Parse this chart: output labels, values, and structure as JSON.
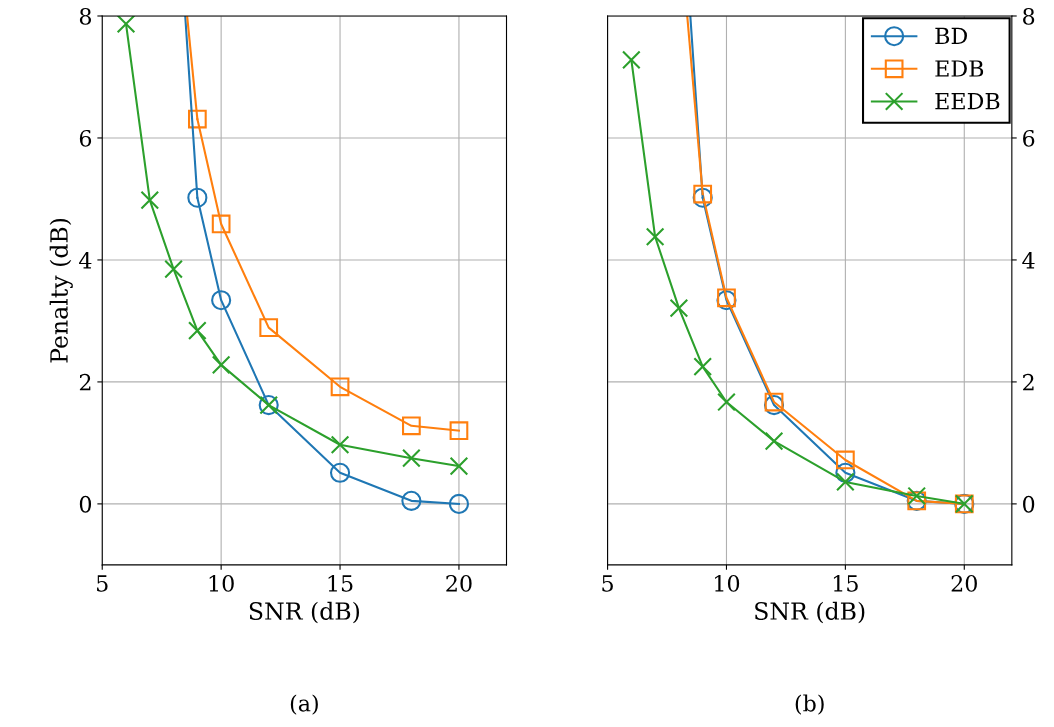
{
  "chart_data": [
    {
      "type": "line",
      "xlabel": "SNR (dB)",
      "ylabel": "Penalty (dB)",
      "annotations": [
        "(a)"
      ],
      "xlim": [
        5,
        22
      ],
      "ylim": [
        -1,
        8
      ],
      "xticks": [
        5,
        10,
        15,
        20
      ],
      "yticks": [
        0,
        2,
        4,
        6,
        8
      ],
      "grid": true,
      "series": [
        {
          "color": "#1f77b4",
          "marker": "circle",
          "x": [
            9,
            10,
            12,
            15,
            18,
            20
          ],
          "values": [
            5.02,
            3.34,
            1.62,
            0.51,
            0.05,
            0
          ]
        },
        {
          "color": "#ff7f0e",
          "marker": "square",
          "x": [
            9,
            10,
            12,
            15,
            18,
            20
          ],
          "values": [
            6.31,
            4.59,
            2.89,
            1.92,
            1.28,
            1.2
          ]
        },
        {
          "color": "#2ca02c",
          "marker": "cross",
          "x": [
            6,
            7,
            8,
            9,
            10,
            12,
            15,
            18,
            20
          ],
          "values": [
            7.87,
            4.98,
            3.85,
            2.84,
            2.28,
            1.62,
            0.97,
            0.75,
            0.62
          ]
        },
        {
          "color": "#1f77b4",
          "marker": "none",
          "x": [
            8.49,
            9
          ],
          "values": [
            8,
            5.02
          ]
        },
        {
          "color": "#ff7f0e",
          "marker": "none",
          "x": [
            8.57,
            9
          ],
          "values": [
            8,
            6.31
          ]
        }
      ]
    },
    {
      "type": "line",
      "xlabel": "SNR (dB)",
      "annotations": [
        "(b)"
      ],
      "xlim": [
        5,
        22
      ],
      "y2lim": [
        -1,
        8
      ],
      "xticks": [
        5,
        10,
        15,
        20
      ],
      "y2ticks": [
        0,
        2,
        4,
        6,
        8
      ],
      "grid": true,
      "legend": "top right",
      "series": [
        {
          "name": "BD",
          "color": "#1f77b4",
          "marker": "circle",
          "axis": "y2",
          "x": [
            9,
            10,
            12,
            15,
            18,
            20
          ],
          "values": [
            5.02,
            3.34,
            1.62,
            0.51,
            0.05,
            0
          ]
        },
        {
          "name": "EDB",
          "color": "#ff7f0e",
          "marker": "square",
          "axis": "y2",
          "x": [
            9,
            10,
            12,
            15,
            18,
            20
          ],
          "values": [
            5.08,
            3.38,
            1.67,
            0.72,
            0.05,
            0
          ]
        },
        {
          "name": "EEDB",
          "color": "#2ca02c",
          "marker": "cross",
          "axis": "y2",
          "x": [
            6,
            7,
            8,
            9,
            10,
            12,
            15,
            18,
            20
          ],
          "values": [
            7.28,
            4.38,
            3.21,
            2.25,
            1.67,
            1.03,
            0.36,
            0.13,
            0
          ]
        },
        {
          "color": "#1f77b4",
          "marker": "none",
          "axis": "y2",
          "x": [
            8.48,
            9
          ],
          "values": [
            8,
            5.02
          ]
        },
        {
          "color": "#ff7f0e",
          "marker": "none",
          "axis": "y2",
          "x": [
            8.35,
            9
          ],
          "values": [
            8,
            5.08
          ]
        }
      ]
    }
  ]
}
